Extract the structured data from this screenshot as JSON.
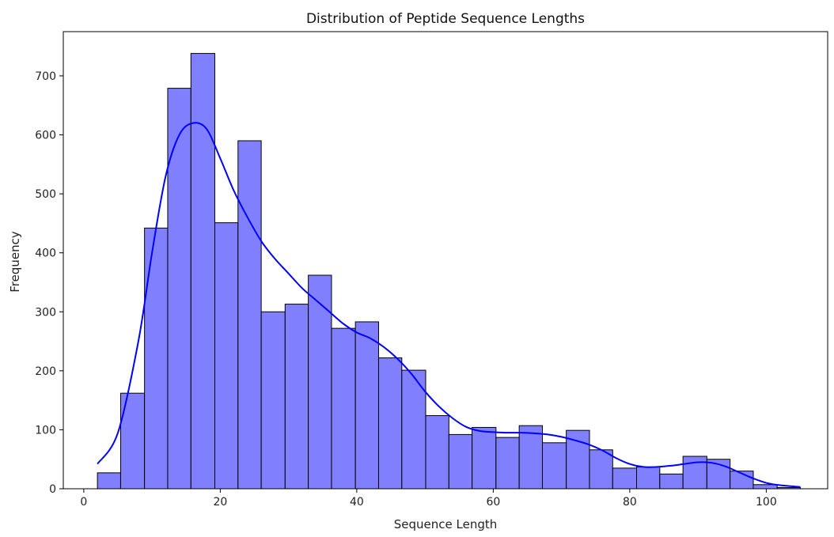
{
  "chart_data": {
    "type": "bar",
    "subtype": "histogram",
    "title": "Distribution of Peptide Sequence Lengths",
    "xlabel": "Sequence Length",
    "ylabel": "Frequency",
    "xlim": [
      -3,
      109
    ],
    "ylim": [
      0,
      775
    ],
    "x_ticks": [
      0,
      20,
      40,
      60,
      80,
      100
    ],
    "y_ticks": [
      0,
      100,
      200,
      300,
      400,
      500,
      600,
      700
    ],
    "grid": false,
    "legend": "none",
    "colors": {
      "bar_fill": "#8080ff",
      "bar_edge": "#000000",
      "kde_line": "#0000ff"
    },
    "bins": [
      {
        "x0": 2.0,
        "x1": 5.4,
        "count": 27
      },
      {
        "x0": 5.4,
        "x1": 8.9,
        "count": 162
      },
      {
        "x0": 8.9,
        "x1": 12.3,
        "count": 442
      },
      {
        "x0": 12.3,
        "x1": 15.7,
        "count": 679
      },
      {
        "x0": 15.7,
        "x1": 19.2,
        "count": 738
      },
      {
        "x0": 19.2,
        "x1": 22.6,
        "count": 451
      },
      {
        "x0": 22.6,
        "x1": 26.0,
        "count": 590
      },
      {
        "x0": 26.0,
        "x1": 29.5,
        "count": 300
      },
      {
        "x0": 29.5,
        "x1": 32.9,
        "count": 313
      },
      {
        "x0": 32.9,
        "x1": 36.3,
        "count": 362
      },
      {
        "x0": 36.3,
        "x1": 39.8,
        "count": 272
      },
      {
        "x0": 39.8,
        "x1": 43.2,
        "count": 283
      },
      {
        "x0": 43.2,
        "x1": 46.6,
        "count": 222
      },
      {
        "x0": 46.6,
        "x1": 50.1,
        "count": 201
      },
      {
        "x0": 50.1,
        "x1": 53.5,
        "count": 124
      },
      {
        "x0": 53.5,
        "x1": 56.9,
        "count": 92
      },
      {
        "x0": 56.9,
        "x1": 60.4,
        "count": 104
      },
      {
        "x0": 60.4,
        "x1": 63.8,
        "count": 87
      },
      {
        "x0": 63.8,
        "x1": 67.2,
        "count": 107
      },
      {
        "x0": 67.2,
        "x1": 70.7,
        "count": 78
      },
      {
        "x0": 70.7,
        "x1": 74.1,
        "count": 99
      },
      {
        "x0": 74.1,
        "x1": 77.5,
        "count": 66
      },
      {
        "x0": 77.5,
        "x1": 81.0,
        "count": 35
      },
      {
        "x0": 81.0,
        "x1": 84.4,
        "count": 37
      },
      {
        "x0": 84.4,
        "x1": 87.8,
        "count": 25
      },
      {
        "x0": 87.8,
        "x1": 91.3,
        "count": 55
      },
      {
        "x0": 91.3,
        "x1": 94.7,
        "count": 50
      },
      {
        "x0": 94.7,
        "x1": 98.1,
        "count": 30
      },
      {
        "x0": 98.1,
        "x1": 101.6,
        "count": 7
      },
      {
        "x0": 101.6,
        "x1": 105.0,
        "count": 2
      }
    ],
    "kde": [
      [
        2,
        42
      ],
      [
        5,
        95
      ],
      [
        8,
        250
      ],
      [
        10,
        400
      ],
      [
        12,
        530
      ],
      [
        14,
        600
      ],
      [
        16,
        620
      ],
      [
        18,
        610
      ],
      [
        20,
        560
      ],
      [
        22,
        505
      ],
      [
        24,
        460
      ],
      [
        26,
        420
      ],
      [
        28,
        390
      ],
      [
        30,
        365
      ],
      [
        32,
        340
      ],
      [
        34,
        320
      ],
      [
        36,
        300
      ],
      [
        38,
        280
      ],
      [
        40,
        265
      ],
      [
        42,
        255
      ],
      [
        44,
        240
      ],
      [
        46,
        220
      ],
      [
        48,
        195
      ],
      [
        50,
        165
      ],
      [
        52,
        140
      ],
      [
        54,
        120
      ],
      [
        56,
        105
      ],
      [
        58,
        98
      ],
      [
        60,
        96
      ],
      [
        62,
        95
      ],
      [
        64,
        95
      ],
      [
        66,
        94
      ],
      [
        68,
        92
      ],
      [
        70,
        88
      ],
      [
        72,
        82
      ],
      [
        74,
        75
      ],
      [
        76,
        65
      ],
      [
        78,
        52
      ],
      [
        80,
        42
      ],
      [
        82,
        37
      ],
      [
        84,
        37
      ],
      [
        86,
        39
      ],
      [
        88,
        42
      ],
      [
        90,
        45
      ],
      [
        92,
        44
      ],
      [
        94,
        38
      ],
      [
        96,
        28
      ],
      [
        98,
        18
      ],
      [
        100,
        10
      ],
      [
        102,
        6
      ],
      [
        105,
        3
      ]
    ]
  }
}
